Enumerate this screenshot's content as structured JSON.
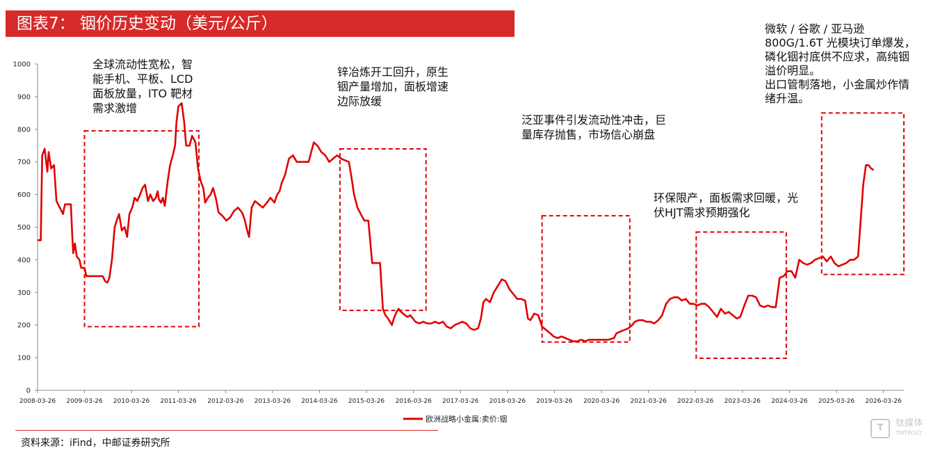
{
  "header": {
    "title": "图表7： 铟价历史变动（美元/公斤）"
  },
  "annotations": [
    {
      "text": "全球流动性宽松，智\n能手机、平板、LCD\n面板放量，ITO 靶材\n需求激增"
    },
    {
      "text": "锌冶炼开工回升，原生\n铟产量增加，面板增速\n边际放缓"
    },
    {
      "text": "泛亚事件引发流动性冲击，巨\n量库存抛售，市场信心崩盘"
    },
    {
      "text": "环保限产，面板需求回暖，光\n伏HJT需求预期强化"
    },
    {
      "text": "微软 / 谷歌 / 亚马逊\n800G/1.6T 光模块订单爆发，\n磷化铟衬底供不应求，高纯铟\n溢价明显。\n出口管制落地，小金属炒作情\n绪升温。"
    }
  ],
  "legend": {
    "label": "欧洲战略小金属:卖价:铟"
  },
  "footer": {
    "source": "资料来源：iFind，中邮证券研究所"
  },
  "watermark": {
    "text": "钛媒体",
    "sub": "TMTPOST"
  },
  "colors": {
    "line": "#e00000",
    "title_bg": "#d72a2a",
    "box": "#e00000"
  },
  "chart_data": {
    "type": "line",
    "title": "",
    "xlabel": "",
    "ylabel": "",
    "ylim": [
      0,
      1000
    ],
    "yticks": [
      0,
      100,
      200,
      300,
      400,
      500,
      600,
      700,
      800,
      900,
      1000
    ],
    "xticks": [
      "2008-03-26",
      "2009-03-26",
      "2010-03-26",
      "2011-03-26",
      "2012-03-26",
      "2013-03-26",
      "2014-03-26",
      "2015-03-26",
      "2016-03-26",
      "2017-03-26",
      "2018-03-26",
      "2019-03-26",
      "2020-03-26",
      "2021-03-26",
      "2022-03-26",
      "2023-03-26",
      "2024-03-26",
      "2025-03-26",
      "2026-03-26"
    ],
    "xlim": [
      "2008-03-26",
      "2026-09-01"
    ],
    "series": [
      {
        "name": "欧洲战略小金属:卖价:铟",
        "points": [
          [
            "2008-03-26",
            460
          ],
          [
            "2008-04-20",
            460
          ],
          [
            "2008-05-01",
            720
          ],
          [
            "2008-05-20",
            740
          ],
          [
            "2008-06-10",
            670
          ],
          [
            "2008-06-20",
            730
          ],
          [
            "2008-07-10",
            680
          ],
          [
            "2008-08-01",
            690
          ],
          [
            "2008-08-20",
            580
          ],
          [
            "2008-09-15",
            560
          ],
          [
            "2008-10-10",
            540
          ],
          [
            "2008-10-25",
            570
          ],
          [
            "2008-11-20",
            570
          ],
          [
            "2008-12-10",
            570
          ],
          [
            "2008-12-20",
            480
          ],
          [
            "2008-12-28",
            420
          ],
          [
            "2009-01-10",
            450
          ],
          [
            "2009-01-25",
            410
          ],
          [
            "2009-02-15",
            400
          ],
          [
            "2009-02-28",
            375
          ],
          [
            "2009-03-26",
            375
          ],
          [
            "2009-04-10",
            350
          ],
          [
            "2009-06-01",
            350
          ],
          [
            "2009-08-15",
            350
          ],
          [
            "2009-09-01",
            335
          ],
          [
            "2009-09-20",
            330
          ],
          [
            "2009-10-05",
            345
          ],
          [
            "2009-10-25",
            400
          ],
          [
            "2009-11-15",
            500
          ],
          [
            "2009-12-01",
            520
          ],
          [
            "2009-12-20",
            540
          ],
          [
            "2010-01-10",
            490
          ],
          [
            "2010-02-01",
            500
          ],
          [
            "2010-02-20",
            470
          ],
          [
            "2010-03-10",
            540
          ],
          [
            "2010-04-01",
            560
          ],
          [
            "2010-04-20",
            590
          ],
          [
            "2010-05-10",
            580
          ],
          [
            "2010-06-01",
            600
          ],
          [
            "2010-06-20",
            620
          ],
          [
            "2010-07-10",
            630
          ],
          [
            "2010-08-01",
            580
          ],
          [
            "2010-08-20",
            600
          ],
          [
            "2010-09-10",
            580
          ],
          [
            "2010-10-01",
            590
          ],
          [
            "2010-10-15",
            610
          ],
          [
            "2010-10-25",
            585
          ],
          [
            "2010-11-10",
            575
          ],
          [
            "2010-11-25",
            590
          ],
          [
            "2010-12-10",
            565
          ],
          [
            "2010-12-20",
            600
          ],
          [
            "2011-01-01",
            640
          ],
          [
            "2011-01-20",
            690
          ],
          [
            "2011-02-10",
            720
          ],
          [
            "2011-02-28",
            750
          ],
          [
            "2011-03-10",
            820
          ],
          [
            "2011-03-26",
            870
          ],
          [
            "2011-04-20",
            880
          ],
          [
            "2011-05-10",
            820
          ],
          [
            "2011-05-25",
            750
          ],
          [
            "2011-06-20",
            750
          ],
          [
            "2011-07-10",
            780
          ],
          [
            "2011-08-05",
            760
          ],
          [
            "2011-08-25",
            680
          ],
          [
            "2011-09-15",
            640
          ],
          [
            "2011-10-05",
            620
          ],
          [
            "2011-10-20",
            575
          ],
          [
            "2011-11-10",
            590
          ],
          [
            "2011-12-01",
            600
          ],
          [
            "2011-12-20",
            620
          ],
          [
            "2012-01-10",
            590
          ],
          [
            "2012-02-01",
            545
          ],
          [
            "2012-03-01",
            535
          ],
          [
            "2012-04-01",
            520
          ],
          [
            "2012-05-01",
            530
          ],
          [
            "2012-06-01",
            550
          ],
          [
            "2012-07-01",
            560
          ],
          [
            "2012-08-01",
            545
          ],
          [
            "2012-08-20",
            525
          ],
          [
            "2012-09-10",
            490
          ],
          [
            "2012-09-25",
            470
          ],
          [
            "2012-10-15",
            560
          ],
          [
            "2012-11-10",
            580
          ],
          [
            "2012-12-10",
            570
          ],
          [
            "2013-01-10",
            560
          ],
          [
            "2013-02-10",
            575
          ],
          [
            "2013-03-10",
            590
          ],
          [
            "2013-04-10",
            575
          ],
          [
            "2013-05-01",
            600
          ],
          [
            "2013-05-20",
            610
          ],
          [
            "2013-06-05",
            635
          ],
          [
            "2013-07-01",
            660
          ],
          [
            "2013-08-01",
            710
          ],
          [
            "2013-09-01",
            720
          ],
          [
            "2013-10-01",
            700
          ],
          [
            "2013-11-01",
            700
          ],
          [
            "2013-12-01",
            700
          ],
          [
            "2014-01-01",
            700
          ],
          [
            "2014-02-10",
            760
          ],
          [
            "2014-03-10",
            750
          ],
          [
            "2014-04-10",
            730
          ],
          [
            "2014-05-10",
            720
          ],
          [
            "2014-06-10",
            700
          ],
          [
            "2014-07-10",
            710
          ],
          [
            "2014-08-10",
            720
          ],
          [
            "2014-09-10",
            710
          ],
          [
            "2014-10-10",
            705
          ],
          [
            "2014-11-10",
            700
          ],
          [
            "2014-12-01",
            650
          ],
          [
            "2014-12-20",
            600
          ],
          [
            "2015-01-15",
            560
          ],
          [
            "2015-02-10",
            540
          ],
          [
            "2015-03-10",
            520
          ],
          [
            "2015-04-10",
            520
          ],
          [
            "2015-05-10",
            390
          ],
          [
            "2015-06-10",
            390
          ],
          [
            "2015-07-10",
            390
          ],
          [
            "2015-08-01",
            250
          ],
          [
            "2015-08-20",
            230
          ],
          [
            "2015-09-10",
            220
          ],
          [
            "2015-10-10",
            200
          ],
          [
            "2015-10-25",
            220
          ],
          [
            "2015-11-15",
            240
          ],
          [
            "2015-12-01",
            250
          ],
          [
            "2015-12-20",
            240
          ],
          [
            "2016-01-20",
            230
          ],
          [
            "2016-02-10",
            225
          ],
          [
            "2016-03-01",
            230
          ],
          [
            "2016-04-10",
            210
          ],
          [
            "2016-05-10",
            205
          ],
          [
            "2016-06-10",
            210
          ],
          [
            "2016-07-10",
            205
          ],
          [
            "2016-08-10",
            205
          ],
          [
            "2016-09-10",
            210
          ],
          [
            "2016-10-10",
            205
          ],
          [
            "2016-11-10",
            210
          ],
          [
            "2016-12-10",
            195
          ],
          [
            "2017-01-10",
            190
          ],
          [
            "2017-02-10",
            200
          ],
          [
            "2017-03-10",
            205
          ],
          [
            "2017-04-10",
            210
          ],
          [
            "2017-05-10",
            205
          ],
          [
            "2017-06-10",
            190
          ],
          [
            "2017-07-10",
            185
          ],
          [
            "2017-08-10",
            190
          ],
          [
            "2017-09-01",
            220
          ],
          [
            "2017-09-20",
            270
          ],
          [
            "2017-10-10",
            280
          ],
          [
            "2017-11-10",
            270
          ],
          [
            "2017-12-10",
            300
          ],
          [
            "2018-01-10",
            320
          ],
          [
            "2018-02-10",
            340
          ],
          [
            "2018-03-10",
            335
          ],
          [
            "2018-04-10",
            310
          ],
          [
            "2018-05-10",
            295
          ],
          [
            "2018-06-10",
            280
          ],
          [
            "2018-07-10",
            280
          ],
          [
            "2018-08-10",
            275
          ],
          [
            "2018-09-01",
            220
          ],
          [
            "2018-09-20",
            215
          ],
          [
            "2018-10-20",
            235
          ],
          [
            "2018-11-20",
            230
          ],
          [
            "2018-12-20",
            195
          ],
          [
            "2019-01-20",
            185
          ],
          [
            "2019-02-20",
            175
          ],
          [
            "2019-03-20",
            165
          ],
          [
            "2019-04-20",
            160
          ],
          [
            "2019-05-20",
            165
          ],
          [
            "2019-06-20",
            160
          ],
          [
            "2019-07-20",
            155
          ],
          [
            "2019-08-20",
            150
          ],
          [
            "2019-09-20",
            150
          ],
          [
            "2019-10-20",
            155
          ],
          [
            "2019-11-20",
            150
          ],
          [
            "2019-12-20",
            155
          ],
          [
            "2020-01-20",
            155
          ],
          [
            "2020-03-20",
            155
          ],
          [
            "2020-05-20",
            155
          ],
          [
            "2020-07-01",
            160
          ],
          [
            "2020-07-20",
            175
          ],
          [
            "2020-08-20",
            180
          ],
          [
            "2020-09-20",
            185
          ],
          [
            "2020-10-20",
            190
          ],
          [
            "2020-11-20",
            200
          ],
          [
            "2020-12-10",
            210
          ],
          [
            "2021-01-10",
            215
          ],
          [
            "2021-02-10",
            215
          ],
          [
            "2021-03-10",
            210
          ],
          [
            "2021-04-10",
            210
          ],
          [
            "2021-05-10",
            205
          ],
          [
            "2021-06-10",
            215
          ],
          [
            "2021-07-10",
            230
          ],
          [
            "2021-08-10",
            265
          ],
          [
            "2021-09-10",
            280
          ],
          [
            "2021-10-10",
            285
          ],
          [
            "2021-11-10",
            285
          ],
          [
            "2021-12-10",
            275
          ],
          [
            "2022-01-10",
            280
          ],
          [
            "2022-02-10",
            265
          ],
          [
            "2022-03-10",
            265
          ],
          [
            "2022-04-10",
            260
          ],
          [
            "2022-05-10",
            265
          ],
          [
            "2022-06-10",
            265
          ],
          [
            "2022-07-10",
            255
          ],
          [
            "2022-08-10",
            240
          ],
          [
            "2022-09-10",
            225
          ],
          [
            "2022-10-10",
            250
          ],
          [
            "2022-11-10",
            235
          ],
          [
            "2022-12-10",
            240
          ],
          [
            "2023-01-10",
            230
          ],
          [
            "2023-02-10",
            220
          ],
          [
            "2023-03-10",
            225
          ],
          [
            "2023-04-10",
            260
          ],
          [
            "2023-05-10",
            290
          ],
          [
            "2023-06-10",
            290
          ],
          [
            "2023-07-10",
            285
          ],
          [
            "2023-08-10",
            260
          ],
          [
            "2023-09-10",
            255
          ],
          [
            "2023-10-10",
            260
          ],
          [
            "2023-11-10",
            255
          ],
          [
            "2023-12-10",
            255
          ],
          [
            "2024-01-10",
            345
          ],
          [
            "2024-02-10",
            350
          ],
          [
            "2024-03-10",
            365
          ],
          [
            "2024-04-10",
            365
          ],
          [
            "2024-05-10",
            345
          ],
          [
            "2024-06-10",
            400
          ],
          [
            "2024-07-10",
            390
          ],
          [
            "2024-08-10",
            385
          ],
          [
            "2024-09-10",
            390
          ],
          [
            "2024-10-10",
            400
          ],
          [
            "2024-11-10",
            405
          ],
          [
            "2024-12-10",
            410
          ],
          [
            "2025-01-10",
            395
          ],
          [
            "2025-02-10",
            410
          ],
          [
            "2025-03-10",
            390
          ],
          [
            "2025-04-10",
            380
          ],
          [
            "2025-05-10",
            385
          ],
          [
            "2025-06-10",
            390
          ],
          [
            "2025-07-10",
            400
          ],
          [
            "2025-08-10",
            400
          ],
          [
            "2025-09-10",
            410
          ],
          [
            "2025-10-01",
            525
          ],
          [
            "2025-10-20",
            630
          ],
          [
            "2025-11-10",
            690
          ],
          [
            "2025-12-01",
            690
          ],
          [
            "2025-12-20",
            680
          ],
          [
            "2026-01-10",
            675
          ]
        ]
      }
    ],
    "highlight_boxes": [
      {
        "from": "2009-03-26",
        "to": "2011-09-01",
        "y_from": 195,
        "y_to": 795
      },
      {
        "from": "2014-09-01",
        "to": "2016-07-01",
        "y_from": 245,
        "y_to": 740
      },
      {
        "from": "2018-12-20",
        "to": "2020-11-01",
        "y_from": 148,
        "y_to": 535
      },
      {
        "from": "2022-04-01",
        "to": "2024-03-01",
        "y_from": 98,
        "y_to": 485
      },
      {
        "from": "2024-12-01",
        "to": "2026-09-01",
        "y_from": 355,
        "y_to": 850
      }
    ],
    "grid": false,
    "legend_position": "bottom-center"
  }
}
